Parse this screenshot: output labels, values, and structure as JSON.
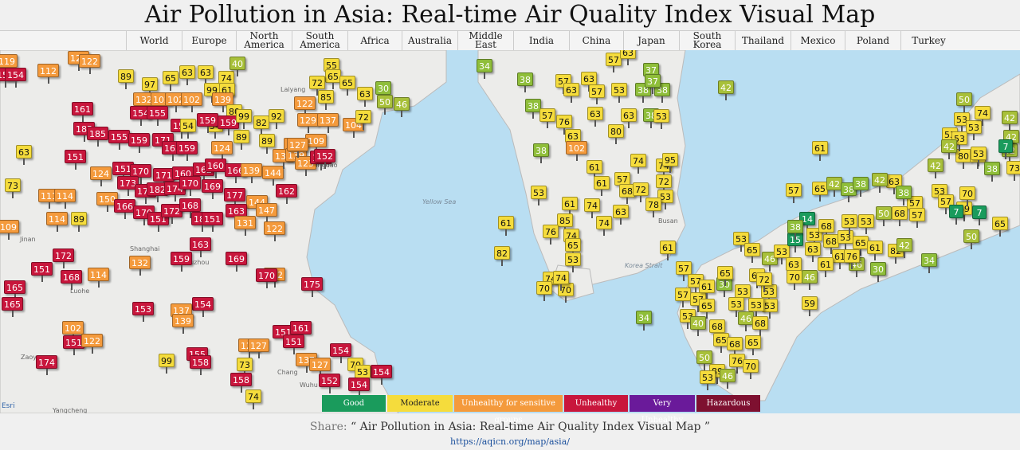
{
  "page": {
    "title": "Air Pollution in Asia: Real-time Air Quality Index Visual Map",
    "share_label": "Share:",
    "share_text": "“ Air Pollution in Asia: Real-time Air Quality Index Visual Map ”",
    "url": "https://aqicn.org/map/asia/"
  },
  "nav": [
    "World",
    "Europe",
    "North America",
    "South America",
    "Africa",
    "Australia",
    "Middle East",
    "India",
    "China",
    "Japan",
    "South Korea",
    "Thailand",
    "Mexico",
    "Poland",
    "Turkey"
  ],
  "legend": [
    {
      "label": "Good",
      "color": "#1a9b5c"
    },
    {
      "label": "Moderate",
      "color": "#f5dc3c",
      "text": "#222"
    },
    {
      "label": "Unhealthy for sensitive groups",
      "color": "#f49a3c"
    },
    {
      "label": "Unhealthy",
      "color": "#c8163c"
    },
    {
      "label": "Very Unhealthy",
      "color": "#6a1a9a"
    },
    {
      "label": "Hazardous",
      "color": "#7e1030"
    }
  ],
  "map_labels": {
    "yellow_sea": "Yellow Sea",
    "korea_strait": "Korea Strait",
    "attribution": "Esri"
  },
  "place_labels": [
    "Shanghai",
    "Suzhou",
    "Jinan",
    "Qingdao",
    "Busan",
    "Zaoyang",
    "Yangcheng",
    "Luohe",
    "Chang",
    "Wuhu",
    "Laiyang"
  ],
  "colors": {
    "good": "#1a9b5c",
    "moderate": "#f5dc3c",
    "usg": "#f49a3c",
    "unhealthy": "#c8163c",
    "very": "#6a1a9a",
    "hazardous": "#7e1030"
  },
  "stations": [
    [
      4,
      77,
      119
    ],
    [
      94,
      73,
      122
    ],
    [
      108,
      77,
      122
    ],
    [
      2,
      94,
      154
    ],
    [
      15,
      94,
      154
    ],
    [
      56,
      89,
      112
    ],
    [
      157,
      96,
      89
    ],
    [
      187,
      106,
      97
    ],
    [
      213,
      98,
      65
    ],
    [
      234,
      91,
      63
    ],
    [
      257,
      91,
      63
    ],
    [
      283,
      98,
      74
    ],
    [
      297,
      80,
      40
    ],
    [
      176,
      125,
      132
    ],
    [
      198,
      125,
      102
    ],
    [
      216,
      125,
      102
    ],
    [
      236,
      125,
      102
    ],
    [
      265,
      113,
      99
    ],
    [
      284,
      113,
      61
    ],
    [
      275,
      125,
      139
    ],
    [
      293,
      140,
      80
    ],
    [
      99,
      137,
      161
    ],
    [
      172,
      142,
      154
    ],
    [
      193,
      142,
      155
    ],
    [
      223,
      158,
      155
    ],
    [
      235,
      158,
      54
    ],
    [
      269,
      158,
      54
    ],
    [
      101,
      162,
      185
    ],
    [
      118,
      168,
      185
    ],
    [
      145,
      172,
      155
    ],
    [
      170,
      176,
      159
    ],
    [
      200,
      176,
      171
    ],
    [
      212,
      186,
      162
    ],
    [
      230,
      186,
      159
    ],
    [
      256,
      151,
      159
    ],
    [
      282,
      154,
      159
    ],
    [
      305,
      146,
      99
    ],
    [
      327,
      154,
      82
    ],
    [
      346,
      146,
      92
    ],
    [
      274,
      186,
      124
    ],
    [
      302,
      172,
      89
    ],
    [
      334,
      177,
      89
    ],
    [
      365,
      182,
      127
    ],
    [
      392,
      177,
      109
    ],
    [
      29,
      191,
      63
    ],
    [
      90,
      197,
      151
    ],
    [
      122,
      218,
      124
    ],
    [
      150,
      212,
      151
    ],
    [
      172,
      215,
      170
    ],
    [
      201,
      220,
      171
    ],
    [
      225,
      218,
      160
    ],
    [
      251,
      213,
      162
    ],
    [
      266,
      208,
      160
    ],
    [
      291,
      214,
      166
    ],
    [
      311,
      214,
      139
    ],
    [
      338,
      217,
      144
    ],
    [
      351,
      196,
      137
    ],
    [
      367,
      195,
      139
    ],
    [
      379,
      205,
      123
    ],
    [
      398,
      198,
      152
    ],
    [
      156,
      230,
      173
    ],
    [
      178,
      240,
      173
    ],
    [
      193,
      238,
      182
    ],
    [
      215,
      237,
      174
    ],
    [
      234,
      230,
      170
    ],
    [
      262,
      234,
      169
    ],
    [
      290,
      245,
      177
    ],
    [
      318,
      254,
      144
    ],
    [
      355,
      240,
      162
    ],
    [
      15,
      233,
      73
    ],
    [
      57,
      246,
      111
    ],
    [
      77,
      246,
      114
    ],
    [
      130,
      250,
      150
    ],
    [
      152,
      259,
      166
    ],
    [
      176,
      267,
      170
    ],
    [
      194,
      275,
      151
    ],
    [
      211,
      265,
      172
    ],
    [
      234,
      258,
      168
    ],
    [
      249,
      275,
      180
    ],
    [
      262,
      275,
      151
    ],
    [
      292,
      265,
      163
    ],
    [
      303,
      280,
      131
    ],
    [
      330,
      264,
      147
    ],
    [
      67,
      275,
      114
    ],
    [
      98,
      275,
      89
    ],
    [
      6,
      285,
      109
    ],
    [
      247,
      307,
      163
    ],
    [
      223,
      325,
      159
    ],
    [
      292,
      325,
      169
    ],
    [
      171,
      330,
      132
    ],
    [
      340,
      345,
      122
    ],
    [
      75,
      321,
      172
    ],
    [
      48,
      338,
      151
    ],
    [
      85,
      348,
      168
    ],
    [
      119,
      345,
      114
    ],
    [
      330,
      346,
      170
    ],
    [
      387,
      357,
      175
    ],
    [
      14,
      361,
      165
    ],
    [
      11,
      382,
      165
    ],
    [
      175,
      388,
      153
    ],
    [
      250,
      382,
      154
    ],
    [
      223,
      390,
      137
    ],
    [
      225,
      403,
      139
    ],
    [
      87,
      412,
      102
    ],
    [
      88,
      430,
      151
    ],
    [
      111,
      428,
      122
    ],
    [
      351,
      417,
      151
    ],
    [
      373,
      412,
      161
    ],
    [
      364,
      429,
      151
    ],
    [
      308,
      434,
      127
    ],
    [
      320,
      434,
      127
    ],
    [
      243,
      445,
      155
    ],
    [
      247,
      455,
      158
    ],
    [
      208,
      453,
      99
    ],
    [
      54,
      455,
      174
    ],
    [
      306,
      458,
      73
    ],
    [
      298,
      477,
      158
    ],
    [
      317,
      498,
      74
    ],
    [
      380,
      452,
      137
    ],
    [
      397,
      458,
      127
    ],
    [
      423,
      440,
      154
    ],
    [
      445,
      458,
      70
    ],
    [
      474,
      467,
      154
    ],
    [
      454,
      467,
      53
    ],
    [
      409,
      478,
      152
    ],
    [
      446,
      483,
      154
    ],
    [
      415,
      82,
      55
    ],
    [
      417,
      96,
      65
    ],
    [
      397,
      104,
      72
    ],
    [
      435,
      104,
      65
    ],
    [
      408,
      122,
      85
    ],
    [
      457,
      118,
      63
    ],
    [
      480,
      111,
      30
    ],
    [
      482,
      128,
      50
    ],
    [
      503,
      131,
      46
    ],
    [
      378,
      130,
      122
    ],
    [
      382,
      151,
      129
    ],
    [
      407,
      151,
      137
    ],
    [
      439,
      157,
      104
    ],
    [
      455,
      147,
      72
    ],
    [
      369,
      182,
      127
    ],
    [
      403,
      196,
      152
    ],
    [
      340,
      287,
      122
    ],
    [
      607,
      83,
      34
    ],
    [
      658,
      100,
      38
    ],
    [
      668,
      133,
      38
    ],
    [
      686,
      145,
      57
    ],
    [
      707,
      153,
      76
    ],
    [
      718,
      171,
      63
    ],
    [
      678,
      189,
      38
    ],
    [
      719,
      186,
      102
    ],
    [
      746,
      143,
      63
    ],
    [
      772,
      165,
      80
    ],
    [
      706,
      102,
      57
    ],
    [
      716,
      113,
      63
    ],
    [
      738,
      99,
      63
    ],
    [
      748,
      115,
      57
    ],
    [
      776,
      113,
      53
    ],
    [
      806,
      113,
      38
    ],
    [
      830,
      113,
      38
    ],
    [
      769,
      75,
      57
    ],
    [
      787,
      66,
      63
    ],
    [
      816,
      88,
      37
    ],
    [
      818,
      102,
      37
    ],
    [
      788,
      145,
      63
    ],
    [
      816,
      145,
      38
    ],
    [
      829,
      146,
      53
    ],
    [
      745,
      210,
      61
    ],
    [
      754,
      230,
      61
    ],
    [
      780,
      225,
      57
    ],
    [
      786,
      240,
      68
    ],
    [
      800,
      202,
      74
    ],
    [
      832,
      208,
      74
    ],
    [
      840,
      201,
      95
    ],
    [
      832,
      228,
      72
    ],
    [
      834,
      247,
      53
    ],
    [
      803,
      238,
      72
    ],
    [
      778,
      266,
      63
    ],
    [
      819,
      257,
      78
    ],
    [
      742,
      258,
      74
    ],
    [
      714,
      256,
      61
    ],
    [
      708,
      277,
      85
    ],
    [
      716,
      296,
      74
    ],
    [
      718,
      308,
      65
    ],
    [
      757,
      280,
      74
    ],
    [
      675,
      242,
      53
    ],
    [
      690,
      291,
      76
    ],
    [
      718,
      326,
      53
    ],
    [
      690,
      350,
      74
    ],
    [
      682,
      362,
      70
    ],
    [
      709,
      364,
      70
    ],
    [
      703,
      349,
      74
    ],
    [
      634,
      280,
      61
    ],
    [
      629,
      318,
      82
    ],
    [
      837,
      311,
      61
    ],
    [
      807,
      399,
      34
    ],
    [
      910,
      110,
      42
    ],
    [
      1028,
      186,
      61
    ],
    [
      857,
      337,
      57
    ],
    [
      872,
      353,
      57
    ],
    [
      856,
      370,
      57
    ],
    [
      875,
      376,
      57
    ],
    [
      886,
      360,
      61
    ],
    [
      908,
      357,
      30
    ],
    [
      909,
      343,
      65
    ],
    [
      931,
      366,
      53
    ],
    [
      964,
      366,
      53
    ],
    [
      965,
      384,
      53
    ],
    [
      948,
      383,
      53
    ],
    [
      923,
      382,
      53
    ],
    [
      886,
      384,
      65
    ],
    [
      862,
      397,
      53
    ],
    [
      875,
      406,
      40
    ],
    [
      899,
      410,
      68
    ],
    [
      935,
      400,
      46
    ],
    [
      953,
      406,
      68
    ],
    [
      904,
      427,
      65
    ],
    [
      921,
      432,
      68
    ],
    [
      944,
      430,
      65
    ],
    [
      883,
      449,
      50
    ],
    [
      924,
      453,
      76
    ],
    [
      941,
      460,
      70
    ],
    [
      899,
      466,
      89
    ],
    [
      887,
      474,
      53
    ],
    [
      912,
      472,
      46
    ],
    [
      929,
      300,
      53
    ],
    [
      943,
      314,
      65
    ],
    [
      965,
      325,
      46
    ],
    [
      980,
      316,
      53
    ],
    [
      949,
      346,
      61
    ],
    [
      958,
      351,
      72
    ],
    [
      995,
      332,
      63
    ],
    [
      996,
      348,
      70
    ],
    [
      1015,
      348,
      46
    ],
    [
      1015,
      381,
      59
    ],
    [
      997,
      301,
      15
    ],
    [
      1012,
      275,
      14
    ],
    [
      1021,
      295,
      53
    ],
    [
      1036,
      284,
      68
    ],
    [
      1042,
      303,
      68
    ],
    [
      1060,
      298,
      53
    ],
    [
      1079,
      305,
      65
    ],
    [
      1097,
      311,
      61
    ],
    [
      1123,
      315,
      82
    ],
    [
      1134,
      308,
      42
    ],
    [
      1165,
      327,
      34
    ],
    [
      1101,
      338,
      30
    ],
    [
      1074,
      332,
      46
    ],
    [
      1053,
      322,
      61
    ],
    [
      1068,
      322,
      76
    ],
    [
      1035,
      332,
      61
    ],
    [
      997,
      285,
      38
    ],
    [
      1019,
      313,
      63
    ],
    [
      995,
      239,
      57
    ],
    [
      1028,
      237,
      65
    ],
    [
      1046,
      231,
      42
    ],
    [
      1064,
      238,
      38
    ],
    [
      1079,
      231,
      38
    ],
    [
      1065,
      278,
      53
    ],
    [
      1086,
      278,
      53
    ],
    [
      1108,
      268,
      50
    ],
    [
      1128,
      268,
      68
    ],
    [
      1147,
      255,
      57
    ],
    [
      1150,
      270,
      57
    ],
    [
      1178,
      240,
      53
    ],
    [
      1186,
      253,
      57
    ],
    [
      1209,
      262,
      89
    ],
    [
      1213,
      243,
      70
    ],
    [
      1229,
      267,
      7
    ],
    [
      1254,
      281,
      65
    ],
    [
      1218,
      297,
      50
    ],
    [
      1200,
      266,
      7
    ],
    [
      1173,
      208,
      42
    ],
    [
      1208,
      196,
      80
    ],
    [
      1226,
      196,
      74
    ],
    [
      1244,
      212,
      38
    ],
    [
      1266,
      189,
      42
    ],
    [
      1268,
      172,
      42
    ],
    [
      1262,
      184,
      7
    ],
    [
      1272,
      211,
      73
    ],
    [
      1266,
      148,
      42
    ],
    [
      1209,
      125,
      50
    ],
    [
      1206,
      150,
      53
    ],
    [
      1191,
      169,
      53
    ],
    [
      1221,
      160,
      53
    ],
    [
      1203,
      174,
      53
    ],
    [
      1232,
      142,
      74
    ],
    [
      1227,
      193,
      53
    ],
    [
      1190,
      184,
      42
    ],
    [
      1121,
      228,
      63
    ],
    [
      1103,
      226,
      42
    ],
    [
      1133,
      242,
      38
    ]
  ]
}
